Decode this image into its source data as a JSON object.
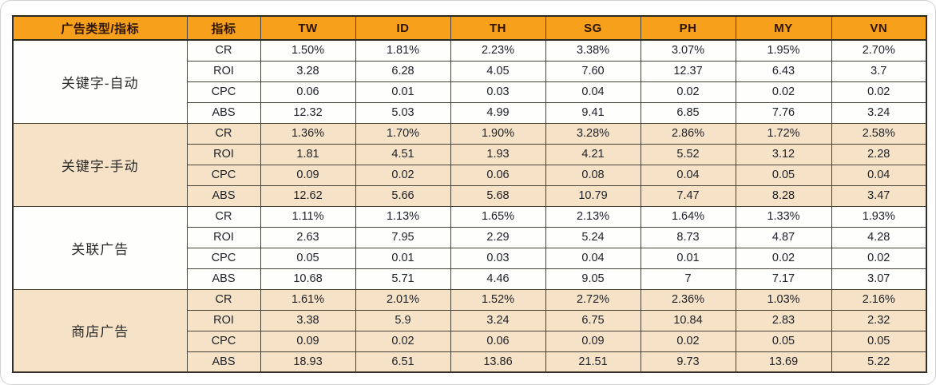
{
  "colors": {
    "header_bg": "#F7A01B",
    "header_text": "#2D1502",
    "row_beige": "#F6E2C6",
    "row_white": "#FEFEFD",
    "grid_border": "#45423A",
    "outer_border": "#34312A"
  },
  "chart_data": {
    "type": "table",
    "title": "",
    "col_group_header": "广告类型/指标",
    "col_metric_header": "指标",
    "columns": [
      "TW",
      "ID",
      "TH",
      "SG",
      "PH",
      "MY",
      "VN"
    ],
    "metrics": [
      "CR",
      "ROI",
      "CPC",
      "ABS"
    ],
    "groups": [
      {
        "label": "关键字-自动",
        "rows": [
          {
            "metric": "CR",
            "values": [
              "1.50%",
              "1.81%",
              "2.23%",
              "3.38%",
              "3.07%",
              "1.95%",
              "2.70%"
            ]
          },
          {
            "metric": "ROI",
            "values": [
              "3.28",
              "6.28",
              "4.05",
              "7.60",
              "12.37",
              "6.43",
              "3.7"
            ]
          },
          {
            "metric": "CPC",
            "values": [
              "0.06",
              "0.01",
              "0.03",
              "0.04",
              "0.02",
              "0.02",
              "0.02"
            ]
          },
          {
            "metric": "ABS",
            "values": [
              "12.32",
              "5.03",
              "4.99",
              "9.41",
              "6.85",
              "7.76",
              "3.24"
            ]
          }
        ]
      },
      {
        "label": "关键字-手动",
        "rows": [
          {
            "metric": "CR",
            "values": [
              "1.36%",
              "1.70%",
              "1.90%",
              "3.28%",
              "2.86%",
              "1.72%",
              "2.58%"
            ]
          },
          {
            "metric": "ROI",
            "values": [
              "1.81",
              "4.51",
              "1.93",
              "4.21",
              "5.52",
              "3.12",
              "2.28"
            ]
          },
          {
            "metric": "CPC",
            "values": [
              "0.09",
              "0.02",
              "0.06",
              "0.08",
              "0.04",
              "0.05",
              "0.04"
            ]
          },
          {
            "metric": "ABS",
            "values": [
              "12.62",
              "5.66",
              "5.68",
              "10.79",
              "7.47",
              "8.28",
              "3.47"
            ]
          }
        ]
      },
      {
        "label": "关联广告",
        "rows": [
          {
            "metric": "CR",
            "values": [
              "1.11%",
              "1.13%",
              "1.65%",
              "2.13%",
              "1.64%",
              "1.33%",
              "1.93%"
            ]
          },
          {
            "metric": "ROI",
            "values": [
              "2.63",
              "7.95",
              "2.29",
              "5.24",
              "8.73",
              "4.87",
              "4.28"
            ]
          },
          {
            "metric": "CPC",
            "values": [
              "0.05",
              "0.01",
              "0.03",
              "0.04",
              "0.01",
              "0.02",
              "0.02"
            ]
          },
          {
            "metric": "ABS",
            "values": [
              "10.68",
              "5.71",
              "4.46",
              "9.05",
              "7",
              "7.17",
              "3.07"
            ]
          }
        ]
      },
      {
        "label": "商店广告",
        "rows": [
          {
            "metric": "CR",
            "values": [
              "1.61%",
              "2.01%",
              "1.52%",
              "2.72%",
              "2.36%",
              "1.03%",
              "2.16%"
            ]
          },
          {
            "metric": "ROI",
            "values": [
              "3.38",
              "5.9",
              "3.24",
              "6.75",
              "10.84",
              "2.83",
              "2.32"
            ]
          },
          {
            "metric": "CPC",
            "values": [
              "0.09",
              "0.02",
              "0.06",
              "0.09",
              "0.02",
              "0.05",
              "0.05"
            ]
          },
          {
            "metric": "ABS",
            "values": [
              "18.93",
              "6.51",
              "13.86",
              "21.51",
              "9.73",
              "13.69",
              "5.22"
            ]
          }
        ]
      }
    ]
  }
}
